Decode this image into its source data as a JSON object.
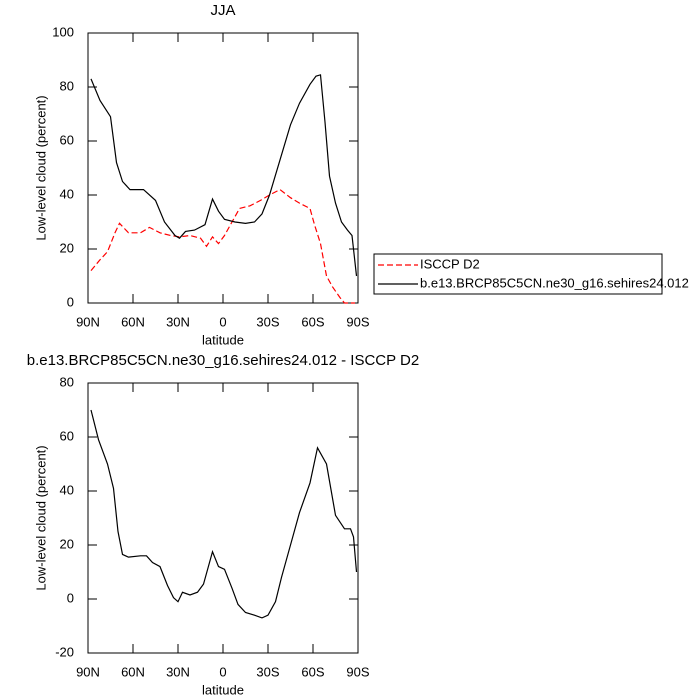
{
  "chart_data": [
    {
      "type": "line",
      "title": "JJA",
      "xlabel": "latitude",
      "ylabel": "Low-level cloud (percent)",
      "xlim": [
        90,
        -90
      ],
      "ylim": [
        0,
        100
      ],
      "xticks": [
        {
          "value": 90,
          "label": "90N"
        },
        {
          "value": 60,
          "label": "60N"
        },
        {
          "value": 30,
          "label": "30N"
        },
        0,
        {
          "value": -30,
          "label": "30S"
        },
        {
          "value": -60,
          "label": "60S"
        },
        {
          "value": -90,
          "label": "90S"
        }
      ],
      "yticks": [
        0,
        20,
        40,
        60,
        80,
        100
      ],
      "legend": "right",
      "series": [
        {
          "name": "ISCCP D2",
          "color": "#ff0000",
          "dashed": true,
          "x": [
            88,
            82,
            77,
            72,
            69,
            63,
            55,
            49,
            42,
            35,
            29,
            22,
            15,
            11,
            7,
            3,
            -1,
            -6,
            -11,
            -18,
            -25,
            -31,
            -38,
            -45,
            -51,
            -58,
            -61,
            -65,
            -69,
            -73,
            -78,
            -81,
            -88
          ],
          "values": [
            12,
            16,
            19,
            26,
            29.5,
            26,
            26,
            28,
            26,
            25,
            24.5,
            25,
            24,
            21,
            24.5,
            22,
            25,
            30,
            35,
            36,
            38,
            40,
            42,
            39,
            37,
            35,
            29,
            22,
            10,
            6,
            2,
            0,
            0
          ]
        },
        {
          "name": "b.e13.BRCP85C5CN.ne30_g16.sehires24.012",
          "color": "#000000",
          "dashed": false,
          "x": [
            88,
            82,
            75,
            71,
            67,
            62,
            53,
            45,
            39,
            32,
            29,
            25,
            19,
            12,
            7,
            3,
            -1,
            -8,
            -15,
            -21,
            -26,
            -31,
            -38,
            -45,
            -51,
            -58,
            -62,
            -65,
            -68,
            -71,
            -75,
            -79,
            -83,
            -86,
            -89
          ],
          "values": [
            83,
            75,
            69,
            52,
            45,
            42,
            42,
            38,
            30,
            25,
            24,
            26.5,
            27,
            29,
            38.5,
            34,
            31,
            30,
            29.5,
            30,
            33,
            40,
            53,
            66,
            74,
            81,
            84,
            84.5,
            67,
            47,
            37,
            30,
            27,
            25,
            10
          ]
        }
      ]
    },
    {
      "type": "line",
      "title": "b.e13.BRCP85C5CN.ne30_g16.sehires24.012 - ISCCP D2",
      "xlabel": "latitude",
      "ylabel": "Low-level cloud (percent)",
      "xlim": [
        90,
        -90
      ],
      "ylim": [
        -20,
        80
      ],
      "xticks": [
        {
          "value": 90,
          "label": "90N"
        },
        {
          "value": 60,
          "label": "60N"
        },
        {
          "value": 30,
          "label": "30N"
        },
        0,
        {
          "value": -30,
          "label": "30S"
        },
        {
          "value": -60,
          "label": "60S"
        },
        {
          "value": -90,
          "label": "90S"
        }
      ],
      "yticks": [
        -20,
        0,
        20,
        40,
        60,
        80
      ],
      "series": [
        {
          "color": "#000000",
          "dashed": false,
          "x": [
            88,
            83,
            77,
            73,
            70,
            67,
            63,
            55,
            51,
            47,
            42,
            37,
            33,
            30,
            27,
            22,
            17,
            13,
            7,
            3,
            -1,
            -6,
            -10,
            -15,
            -21,
            -26,
            -30,
            -35,
            -39,
            -45,
            -51,
            -58,
            -63,
            -69,
            -75,
            -81,
            -85,
            -87,
            -89
          ],
          "values": [
            70,
            59,
            50,
            41,
            25,
            16.5,
            15.5,
            16,
            16,
            13.5,
            12,
            5,
            0.5,
            -1,
            2.5,
            1.5,
            2.5,
            5.5,
            17.5,
            12,
            11,
            4,
            -2,
            -5,
            -6,
            -7,
            -6,
            -1,
            8,
            20,
            32,
            43,
            56,
            50,
            31,
            26,
            26,
            23,
            10
          ]
        }
      ]
    }
  ]
}
